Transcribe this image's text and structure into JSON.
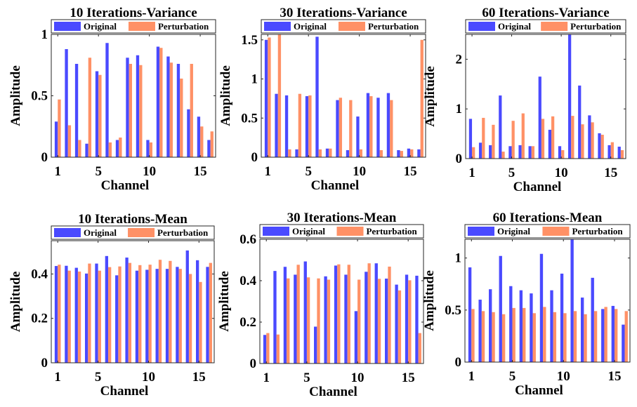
{
  "legend": {
    "original": "Original",
    "perturbation": "Perturbation"
  },
  "colors": {
    "original": "#4a4aff",
    "perturbation": "#ff9166"
  },
  "chart_data": [
    {
      "type": "bar",
      "title": "10 Iterations-Variance",
      "xlabel": "Channel",
      "ylabel": "Amplitude",
      "categories": [
        1,
        2,
        3,
        4,
        5,
        6,
        7,
        8,
        9,
        10,
        11,
        12,
        13,
        14,
        15,
        16
      ],
      "xticks": [
        1,
        5,
        10,
        15
      ],
      "ylim": [
        0,
        1
      ],
      "yticks": [
        0,
        0.5,
        1
      ],
      "ytick_labels": [
        "0",
        "0.5",
        "1"
      ],
      "series": [
        {
          "name": "Original",
          "values": [
            0.29,
            0.88,
            0.76,
            0.11,
            0.7,
            0.93,
            0.14,
            0.81,
            0.83,
            0.14,
            0.9,
            0.82,
            0.76,
            0.39,
            0.33,
            0.14
          ]
        },
        {
          "name": "Perturbation",
          "values": [
            0.47,
            0.26,
            0.14,
            0.81,
            0.67,
            0.12,
            0.16,
            0.76,
            0.75,
            0.12,
            0.89,
            0.77,
            0.64,
            0.76,
            0.25,
            0.21
          ]
        }
      ]
    },
    {
      "type": "bar",
      "title": "30 Iterations-Variance",
      "xlabel": "Channel",
      "ylabel": "Amplitude",
      "categories": [
        1,
        2,
        3,
        4,
        5,
        6,
        7,
        8,
        9,
        10,
        11,
        12,
        13,
        14,
        15,
        16
      ],
      "xticks": [
        1,
        5,
        10,
        15
      ],
      "ylim": [
        0,
        1.57
      ],
      "yticks": [
        0,
        0.5,
        1,
        1.5
      ],
      "ytick_labels": [
        "0",
        "0.5",
        "1",
        "1.5"
      ],
      "series": [
        {
          "name": "Original",
          "values": [
            1.5,
            0.81,
            0.79,
            0.1,
            0.78,
            1.54,
            0.11,
            0.73,
            0.09,
            0.52,
            0.82,
            0.76,
            0.82,
            0.09,
            0.11,
            0.1
          ]
        },
        {
          "name": "Perturbation",
          "values": [
            1.53,
            1.57,
            0.1,
            0.81,
            0.79,
            0.1,
            0.11,
            0.76,
            0.73,
            0.1,
            0.78,
            0.09,
            0.73,
            0.08,
            0.1,
            1.5
          ]
        }
      ]
    },
    {
      "type": "bar",
      "title": "60 Iterations-Variance",
      "xlabel": "Channel",
      "ylabel": "Amplitude",
      "categories": [
        1,
        2,
        3,
        4,
        5,
        6,
        7,
        8,
        9,
        10,
        11,
        12,
        13,
        14,
        15,
        16
      ],
      "xticks": [
        1,
        5,
        10,
        15
      ],
      "ylim": [
        0,
        2.5
      ],
      "yticks": [
        0,
        1,
        2
      ],
      "ytick_labels": [
        "0",
        "1",
        "2"
      ],
      "series": [
        {
          "name": "Original",
          "values": [
            0.8,
            0.32,
            0.27,
            1.27,
            0.25,
            0.27,
            0.25,
            1.65,
            0.58,
            0.25,
            2.5,
            1.47,
            0.87,
            0.51,
            0.27,
            0.24
          ]
        },
        {
          "name": "Perturbation",
          "values": [
            0.23,
            0.82,
            0.68,
            0.14,
            0.76,
            0.91,
            0.25,
            0.8,
            0.85,
            0.17,
            0.86,
            0.69,
            0.73,
            0.48,
            0.33,
            0.17
          ]
        }
      ]
    },
    {
      "type": "bar",
      "title": "10 Iterations-Mean",
      "xlabel": "Channel",
      "ylabel": "Amplitude",
      "categories": [
        1,
        2,
        3,
        4,
        5,
        6,
        7,
        8,
        9,
        10,
        11,
        12,
        13,
        14,
        15,
        16
      ],
      "xticks": [
        1,
        5,
        10,
        15
      ],
      "ylim": [
        0,
        0.55
      ],
      "yticks": [
        0,
        0.2,
        0.4
      ],
      "ytick_labels": [
        "0",
        "0.2",
        "0.4"
      ],
      "series": [
        {
          "name": "Original",
          "values": [
            0.436,
            0.437,
            0.428,
            0.402,
            0.447,
            0.481,
            0.394,
            0.474,
            0.415,
            0.419,
            0.423,
            0.423,
            0.432,
            0.506,
            0.462,
            0.432
          ]
        },
        {
          "name": "Perturbation",
          "values": [
            0.442,
            0.415,
            0.411,
            0.447,
            0.415,
            0.431,
            0.434,
            0.45,
            0.44,
            0.442,
            0.464,
            0.459,
            0.423,
            0.4,
            0.364,
            0.45
          ]
        }
      ]
    },
    {
      "type": "bar",
      "title": "30 Iterations-Mean",
      "xlabel": "Channel",
      "ylabel": "Amplitude",
      "categories": [
        1,
        2,
        3,
        4,
        5,
        6,
        7,
        8,
        9,
        10,
        11,
        12,
        13,
        14,
        15,
        16
      ],
      "xticks": [
        1,
        5,
        10,
        15
      ],
      "ylim": [
        0,
        0.6
      ],
      "yticks": [
        0,
        0.2,
        0.4,
        0.6
      ],
      "ytick_labels": [
        "0",
        "0.2",
        "0.4",
        "0.6"
      ],
      "series": [
        {
          "name": "Original",
          "values": [
            0.138,
            0.447,
            0.467,
            0.429,
            0.493,
            0.178,
            0.421,
            0.473,
            0.429,
            0.253,
            0.443,
            0.484,
            0.41,
            0.381,
            0.429,
            0.424
          ]
        },
        {
          "name": "Perturbation",
          "values": [
            0.147,
            0.14,
            0.411,
            0.477,
            0.416,
            0.411,
            0.405,
            0.479,
            0.477,
            0.405,
            0.484,
            0.409,
            0.468,
            0.353,
            0.402,
            0.147
          ]
        }
      ]
    },
    {
      "type": "bar",
      "title": "60 Iterations-Mean",
      "xlabel": "Channel",
      "ylabel": "Amplitude",
      "categories": [
        1,
        2,
        3,
        4,
        5,
        6,
        7,
        8,
        9,
        10,
        11,
        12,
        13,
        14,
        15,
        16
      ],
      "xticks": [
        1,
        5,
        10,
        15
      ],
      "ylim": [
        0,
        1.18
      ],
      "yticks": [
        0,
        0.5,
        1
      ],
      "ytick_labels": [
        "0",
        "0.5",
        "1"
      ],
      "series": [
        {
          "name": "Original",
          "values": [
            0.91,
            0.6,
            0.7,
            1.02,
            0.73,
            0.69,
            0.66,
            1.04,
            0.69,
            0.85,
            1.18,
            0.62,
            0.81,
            0.51,
            0.54,
            0.36
          ]
        },
        {
          "name": "Perturbation",
          "values": [
            0.51,
            0.49,
            0.48,
            0.46,
            0.52,
            0.52,
            0.47,
            0.53,
            0.48,
            0.47,
            0.49,
            0.46,
            0.49,
            0.53,
            0.51,
            0.49
          ]
        }
      ]
    }
  ]
}
